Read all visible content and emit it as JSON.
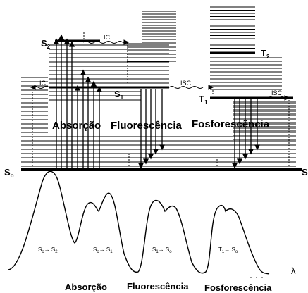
{
  "diagram": {
    "states": {
      "s0": {
        "base": "S",
        "sub": "o"
      },
      "s0_right": {
        "base": "S",
        "sub": ""
      },
      "s1": {
        "base": "S",
        "sub": "1"
      },
      "s2": {
        "base": "S",
        "sub": "2"
      },
      "t1": {
        "base": "T",
        "sub": "1"
      },
      "t2": {
        "base": "T",
        "sub": "2"
      }
    },
    "process_labels": {
      "ic": "IC",
      "isc": "ISC"
    },
    "section_labels": {
      "absorption": "Absorção",
      "fluorescence": "Fluorescência",
      "phosphorescence": "Fosforescência"
    },
    "transitions": {
      "abs_big": {
        "from": "S",
        "from_sub": "o",
        "to": "S",
        "to_sub": "2"
      },
      "abs_small": {
        "from": "S",
        "from_sub": "o",
        "to": "S",
        "to_sub": "1"
      },
      "fluor": {
        "from": "S",
        "from_sub": "1",
        "to": "S",
        "to_sub": "o"
      },
      "phos": {
        "from": "T",
        "from_sub": "1",
        "to": "S",
        "to_sub": "o"
      }
    },
    "axis_label": "λ",
    "colors": {
      "ink": "#000000",
      "background": "#ffffff"
    }
  }
}
